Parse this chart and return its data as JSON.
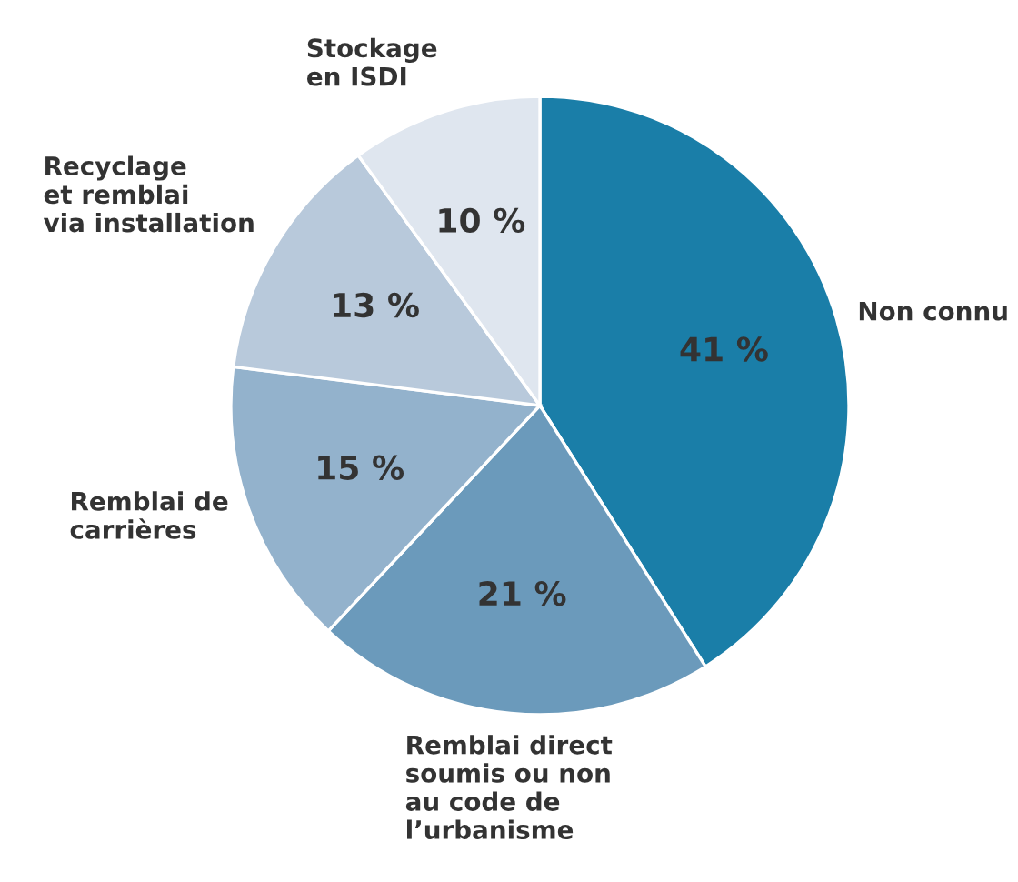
{
  "chart_data": {
    "type": "pie",
    "categories": [
      "Non connu",
      "Remblai direct\nsoumis ou non\nau code de\nl’urbanisme",
      "Remblai de\ncarrières",
      "Recyclage\net remblai\nvia installation",
      "Stockage\nen ISDI"
    ],
    "values": [
      41,
      21,
      15,
      13,
      10
    ],
    "value_labels": [
      "41 %",
      "21 %",
      "15 %",
      "13 %",
      "10 %"
    ],
    "colors": [
      "#1a7ea8",
      "#6b9abb",
      "#93b2cc",
      "#b8c9db",
      "#dfe6ef"
    ],
    "legend": false
  }
}
